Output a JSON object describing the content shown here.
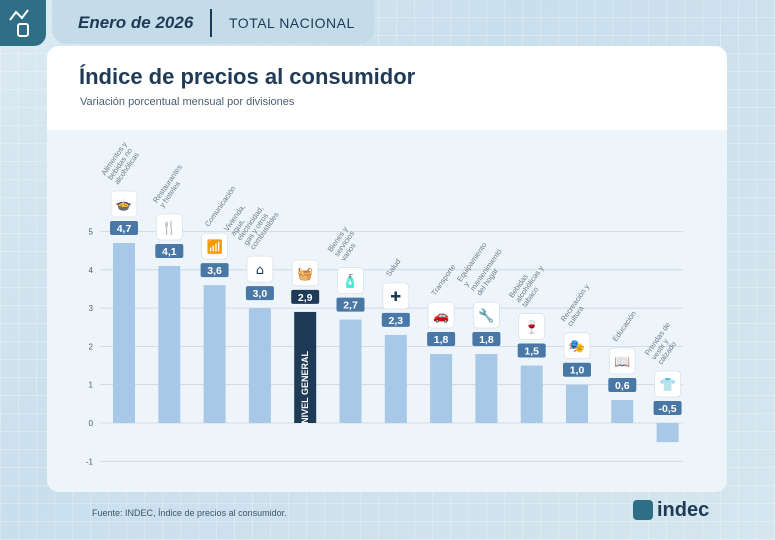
{
  "header": {
    "date": "Enero de 2026",
    "scope": "TOTAL NACIONAL"
  },
  "title": "Índice de precios al consumidor",
  "subtitle": "Variación porcentual mensual por divisiones",
  "source": "Fuente: INDEC, Índice de precios al consumidor.",
  "brand": "indec",
  "colors": {
    "bar": "#a7c8e6",
    "highlight": "#1f3a56",
    "label_bg": "#4a78a6"
  },
  "chart_data": {
    "type": "bar",
    "ylim": [
      -1,
      5
    ],
    "yticks": [
      "-1",
      "0",
      "1",
      "2",
      "3",
      "4",
      "5"
    ],
    "grid": true,
    "categories": [
      "Alimentos y bebidas no alcohólicas",
      "Restaurantes y hoteles",
      "Comunicación",
      "Vivienda, agua, electricidad, gas y otros combustibles",
      "NIVEL GENERAL",
      "Bienes y servicios varios",
      "Salud",
      "Transporte",
      "Equipamiento y mantenimiento del hogar",
      "Bebidas alcohólicas y tabaco",
      "Recreación y cultura",
      "Educación",
      "Prendas de vestir y calzado"
    ],
    "values": [
      4.7,
      4.1,
      3.6,
      3.0,
      2.9,
      2.7,
      2.3,
      1.8,
      1.8,
      1.5,
      1.0,
      0.6,
      -0.5
    ],
    "labels": [
      "4,7",
      "4,1",
      "3,6",
      "3,0",
      "2,9",
      "2,7",
      "2,3",
      "1,8",
      "1,8",
      "1,5",
      "1,0",
      "0,6",
      "-0,5"
    ],
    "icons": [
      "food-bowl-icon",
      "cutlery-icon",
      "wifi-icon",
      "house-energy-icon",
      "basket-icon",
      "bottles-icon",
      "health-cross-icon",
      "car-icon",
      "tools-icon",
      "bottle-glass-icon",
      "theater-masks-icon",
      "book-icon",
      "tshirt-icon"
    ],
    "highlight_index": 4
  }
}
